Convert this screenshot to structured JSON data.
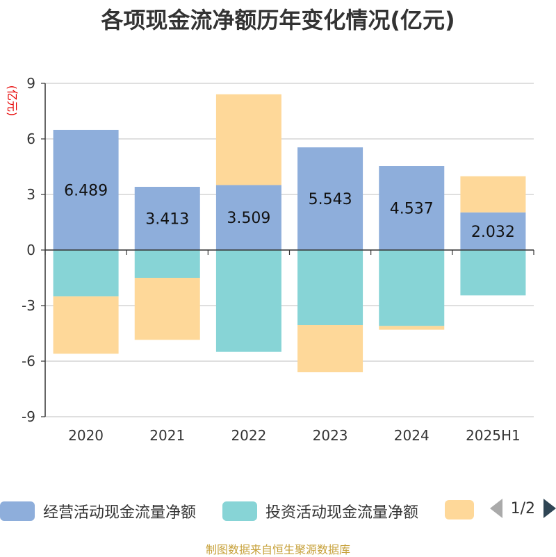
{
  "chart_data": {
    "type": "bar",
    "stacked": true,
    "title": "各项现金流净额历年变化情况(亿元)",
    "ylabel": "(亿元)",
    "ylim": [
      -9,
      9
    ],
    "yticks": [
      9,
      6,
      3,
      0,
      -3,
      -6,
      -9
    ],
    "grid": true,
    "legend_placement": "bottom",
    "categories": [
      "2020",
      "2021",
      "2022",
      "2023",
      "2024",
      "2025H1"
    ],
    "series": [
      {
        "name": "经营活动现金流量净额",
        "color": "#8eaedb",
        "values": [
          6.489,
          3.413,
          3.509,
          5.543,
          4.537,
          2.032
        ],
        "show_labels": true
      },
      {
        "name": "投资活动现金流量净额",
        "color": "#87d4d6",
        "values": [
          -2.5,
          -1.5,
          -5.5,
          -4.05,
          -4.1,
          -2.45
        ],
        "show_labels": false
      },
      {
        "name": "",
        "color": "#fed899",
        "values": [
          -3.1,
          -3.35,
          4.9,
          -2.55,
          -0.2,
          1.95
        ],
        "show_labels": false
      }
    ]
  },
  "legend": {
    "items": [
      {
        "name": "经营活动现金流量净额",
        "color": "#8eaedb"
      },
      {
        "name": "投资活动现金流量净额",
        "color": "#87d4d6"
      },
      {
        "name": "",
        "color": "#fed899"
      }
    ],
    "page_text": "1/2"
  },
  "source": "制图数据来自恒生聚源数据库"
}
